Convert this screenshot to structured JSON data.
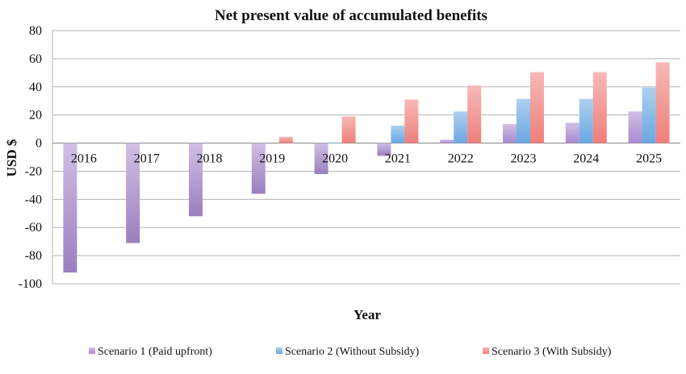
{
  "chart_data": {
    "type": "bar",
    "title": "Net present value of accumulated benefits",
    "xlabel": "Year",
    "ylabel": "USD $",
    "categories": [
      "2016",
      "2017",
      "2018",
      "2019",
      "2020",
      "2021",
      "2022",
      "2023",
      "2024",
      "2025"
    ],
    "ylim": [
      -100,
      80
    ],
    "yticks": [
      80,
      60,
      40,
      20,
      0,
      -20,
      -40,
      -60,
      -80,
      -100
    ],
    "grid": true,
    "legend_position": "bottom",
    "series": [
      {
        "name": "Scenario 1 (Paid upfront)",
        "color": "#a98ad0",
        "values": [
          -92,
          -71,
          -52,
          -36,
          -22,
          -9,
          2.5,
          13.5,
          14.5,
          22.5
        ]
      },
      {
        "name": "Scenario 2 (Without Subsidy)",
        "color": "#6aa8e2",
        "values": [
          0,
          0,
          0,
          0,
          0.5,
          12.5,
          22.5,
          31.5,
          31.5,
          39.5
        ]
      },
      {
        "name": "Scenario 3 (With Subsidy)",
        "color": "#ee7f7b",
        "values": [
          0,
          0,
          0,
          4.5,
          19,
          31,
          41,
          50.5,
          50.5,
          57.5
        ]
      }
    ]
  }
}
